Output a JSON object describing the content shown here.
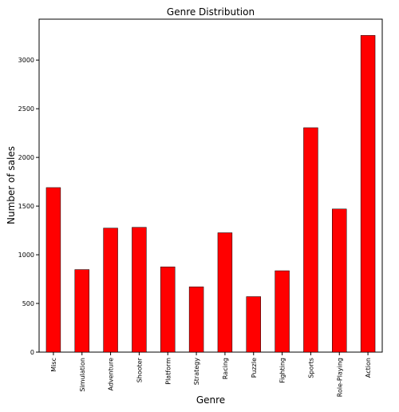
{
  "chart_data": {
    "type": "bar",
    "title": "Genre Distribution",
    "xlabel": "Genre",
    "ylabel": "Number of sales",
    "categories": [
      "Misc",
      "Simulation",
      "Adventure",
      "Shooter",
      "Platform",
      "Strategy",
      "Racing",
      "Puzzle",
      "Fighting",
      "Sports",
      "Role-Playing",
      "Action"
    ],
    "values": [
      1690,
      848,
      1274,
      1282,
      876,
      671,
      1226,
      570,
      836,
      2305,
      1470,
      3253
    ],
    "ylim": [
      0,
      3420
    ],
    "yticks": [
      0,
      500,
      1000,
      1500,
      2000,
      2500,
      3000
    ],
    "grid": false,
    "legend": "none",
    "bar_color": "#ff0000",
    "bar_edge_color": "#000000"
  }
}
